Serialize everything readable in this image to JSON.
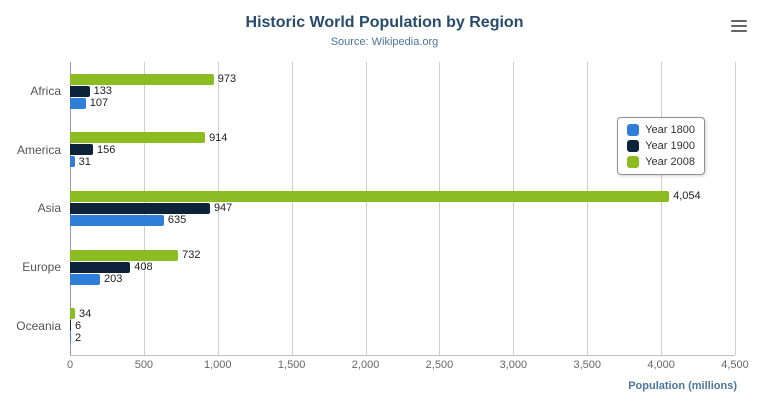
{
  "title": "Historic World Population by Region",
  "subtitle": "Source: Wikipedia.org",
  "xaxis_title": "Population (millions)",
  "colors": {
    "year1800": "#2f7ed8",
    "year1900": "#0d233a",
    "year2008": "#8bbc21",
    "title_text": "#274b6d",
    "subtitle_text": "#4d759e",
    "grid": "#cfcfcf"
  },
  "chart_data": {
    "type": "bar",
    "orientation": "horizontal",
    "title": "Historic World Population by Region",
    "subtitle": "Source: Wikipedia.org",
    "categories": [
      "Africa",
      "America",
      "Asia",
      "Europe",
      "Oceania"
    ],
    "series": [
      {
        "name": "Year 1800",
        "color": "#2f7ed8",
        "values": [
          107,
          31,
          635,
          203,
          2
        ]
      },
      {
        "name": "Year 1900",
        "color": "#0d233a",
        "values": [
          133,
          156,
          947,
          408,
          6
        ]
      },
      {
        "name": "Year 2008",
        "color": "#8bbc21",
        "values": [
          973,
          914,
          4054,
          732,
          34
        ]
      }
    ],
    "xlabel": "Population (millions)",
    "xlim": [
      0,
      4500
    ],
    "xticks": [
      0,
      500,
      1000,
      1500,
      2000,
      2500,
      3000,
      3500,
      4000,
      4500
    ],
    "grid": true,
    "legend_position": "right",
    "data_labels": true
  }
}
